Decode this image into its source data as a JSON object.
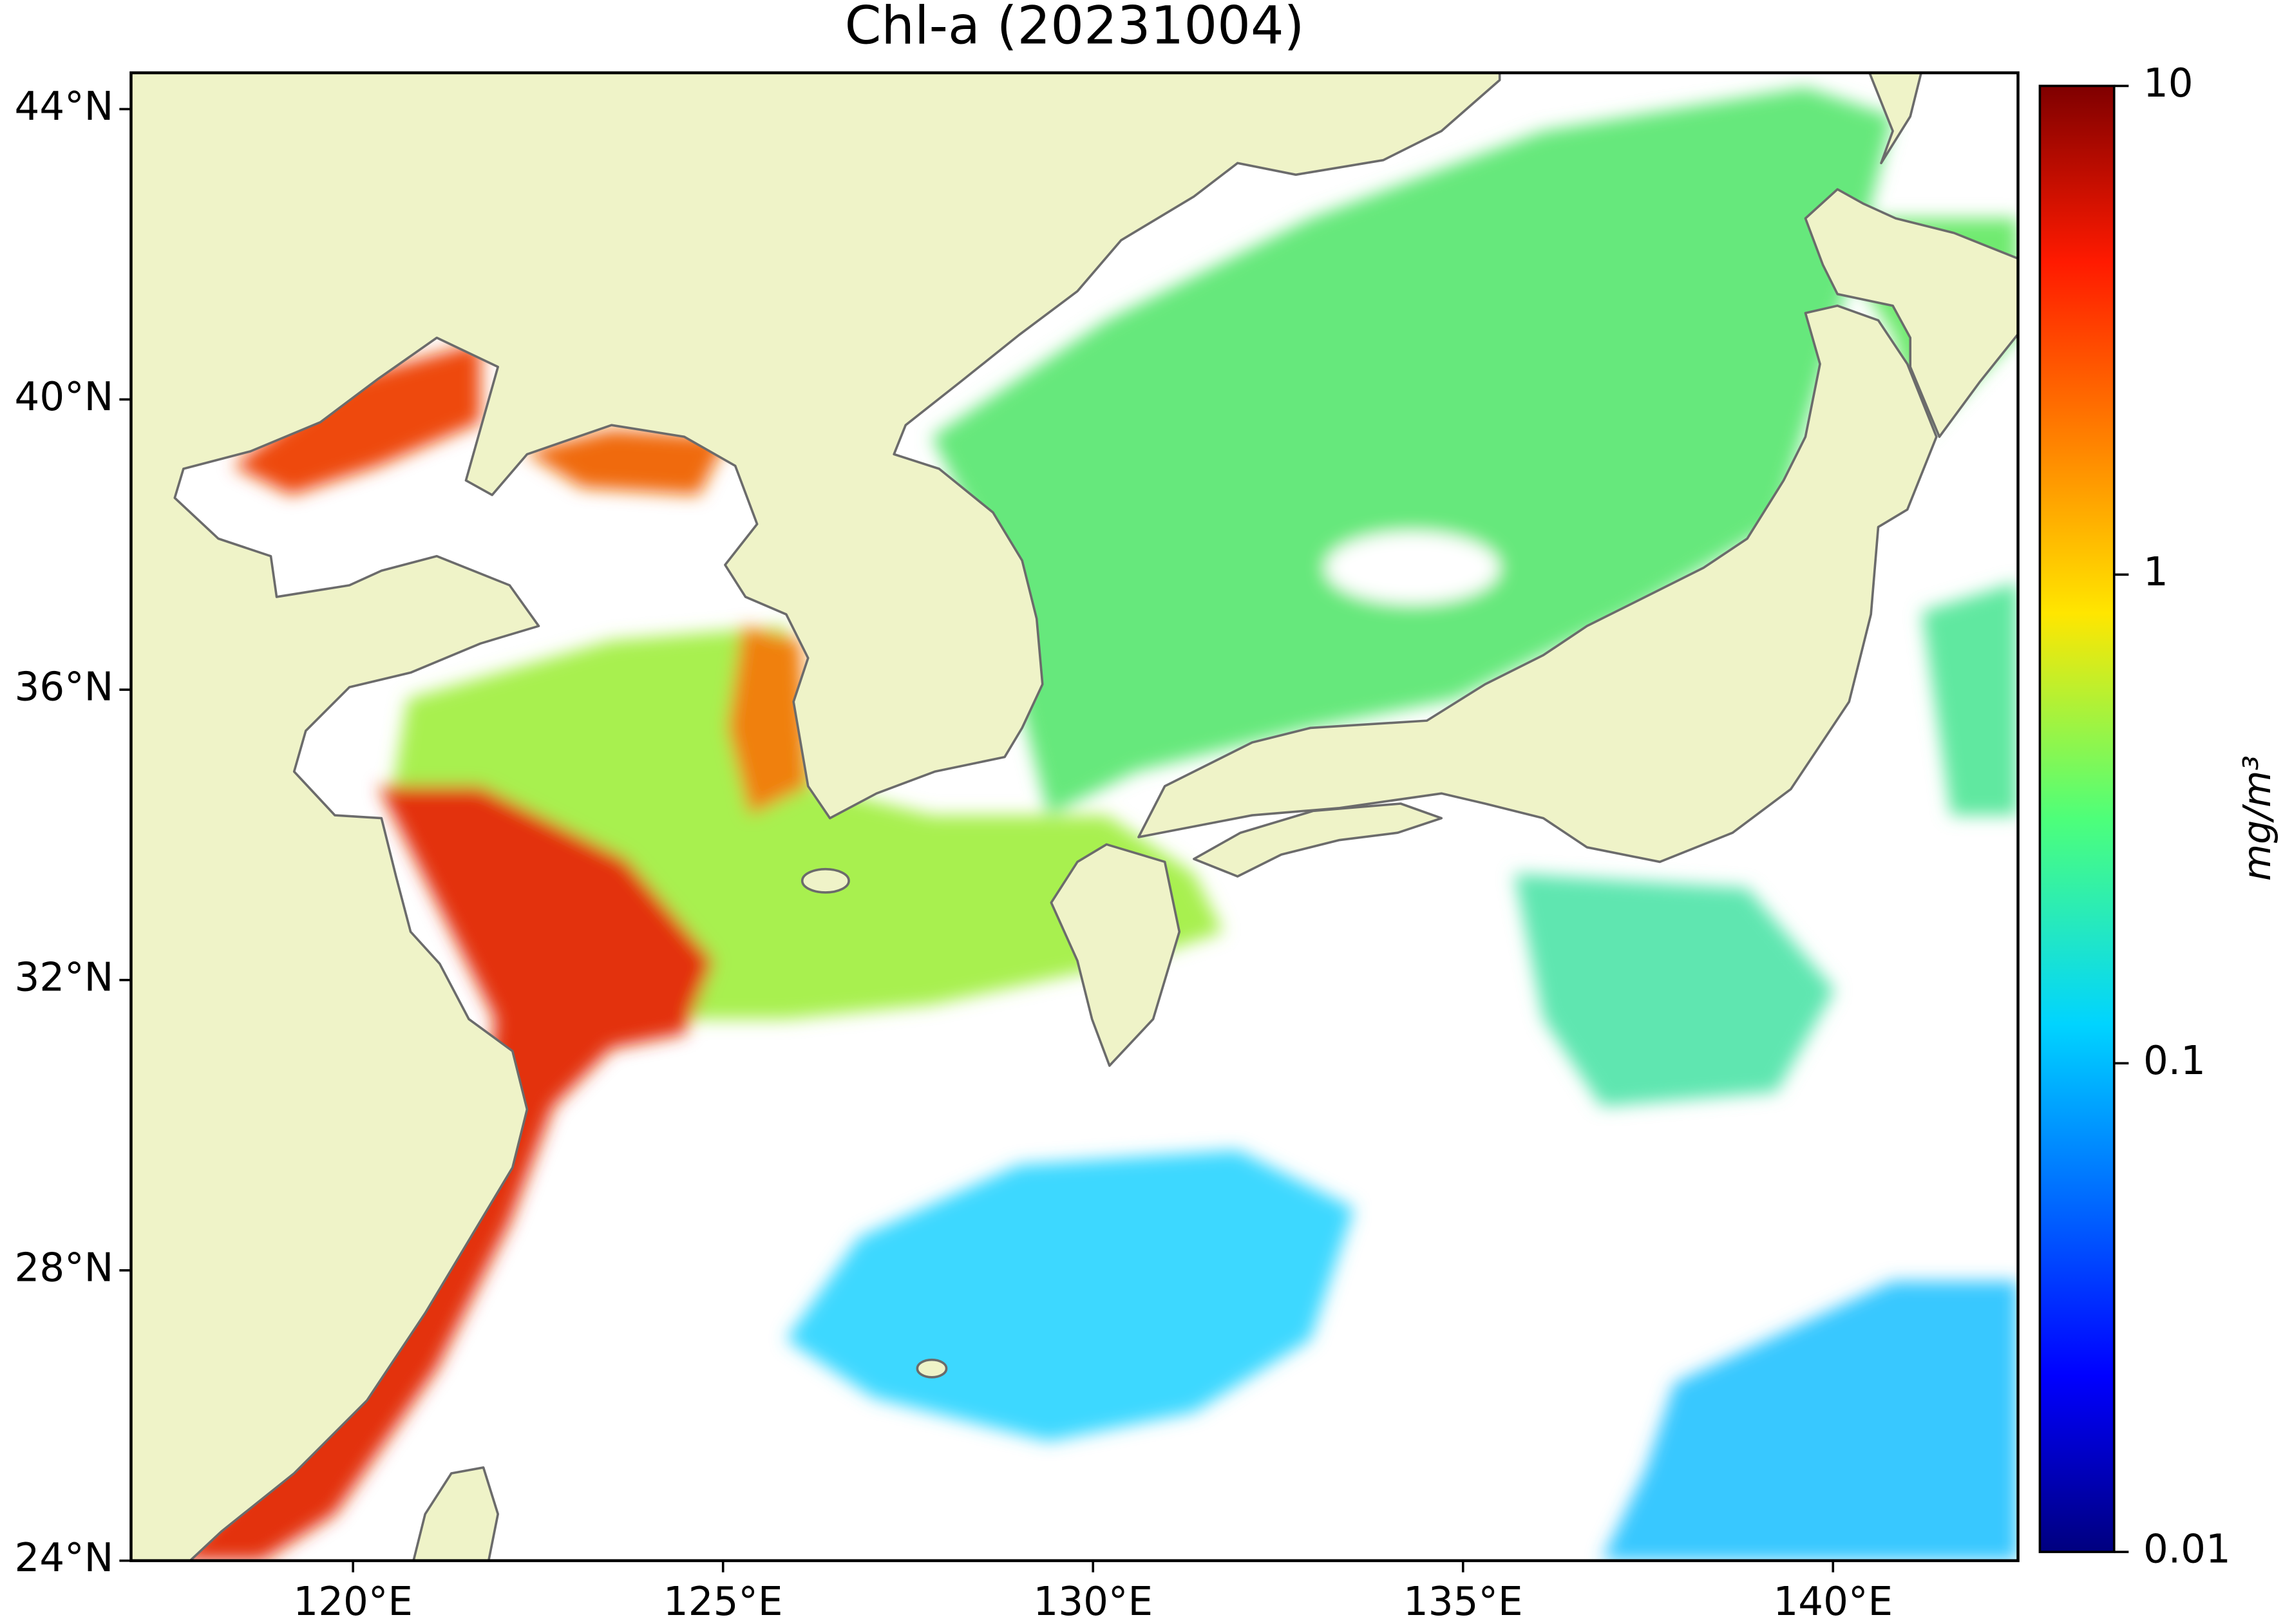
{
  "title": "Chl-a (20231004)",
  "map": {
    "xlim": [
      117,
      142.5
    ],
    "ylim": [
      24,
      44.5
    ],
    "xticks": [
      {
        "value": 120,
        "label": "120°E"
      },
      {
        "value": 125,
        "label": "125°E"
      },
      {
        "value": 130,
        "label": "130°E"
      },
      {
        "value": 135,
        "label": "135°E"
      },
      {
        "value": 140,
        "label": "140°E"
      }
    ],
    "yticks": [
      {
        "value": 24,
        "label": "24°N"
      },
      {
        "value": 28,
        "label": "28°N"
      },
      {
        "value": 32,
        "label": "32°N"
      },
      {
        "value": 36,
        "label": "36°N"
      },
      {
        "value": 40,
        "label": "40°N"
      },
      {
        "value": 44,
        "label": "44°N"
      }
    ]
  },
  "colorbar": {
    "label": "mg/m³",
    "scale": "log",
    "lim": [
      0.01,
      10
    ],
    "ticks": [
      0.01,
      0.1,
      1,
      10
    ]
  }
}
